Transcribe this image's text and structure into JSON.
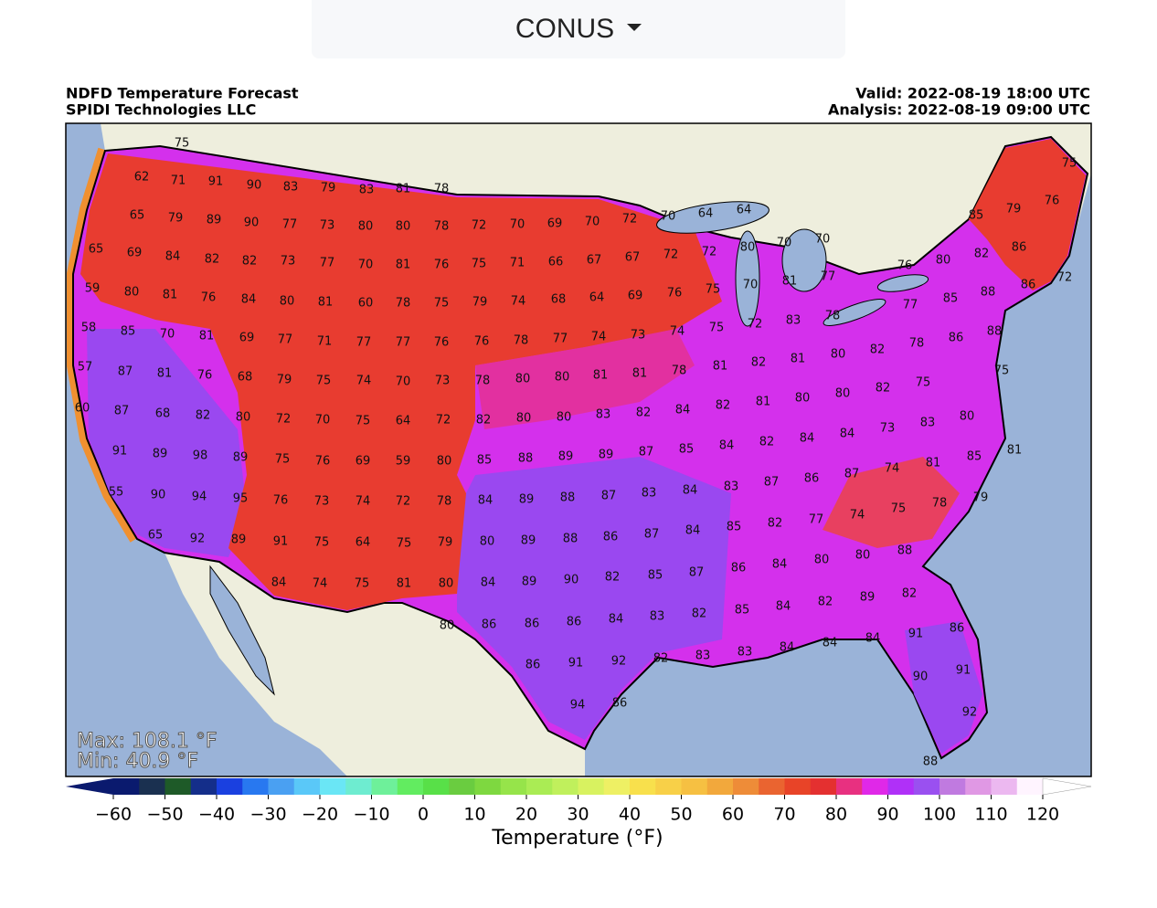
{
  "dropdown": {
    "label": "CONUS"
  },
  "map": {
    "title": "NDFD Temperature Forecast",
    "source": "SPIDI Technologies LLC",
    "valid": "Valid: 2022-08-19 18:00 UTC",
    "analysis": "Analysis: 2022-08-19 09:00 UTC",
    "max_label": "Max: 108.1 °F",
    "min_label": "Min: 40.9 °F",
    "station_values": [
      75,
      62,
      71,
      91,
      90,
      83,
      79,
      83,
      81,
      78,
      65,
      79,
      89,
      90,
      77,
      73,
      80,
      80,
      78,
      72,
      70,
      69,
      70,
      72,
      70,
      64,
      64,
      85,
      79,
      76,
      75,
      65,
      69,
      84,
      82,
      82,
      73,
      77,
      70,
      81,
      76,
      75,
      71,
      66,
      67,
      67,
      72,
      72,
      80,
      70,
      70,
      80,
      82,
      86,
      76,
      72,
      59,
      80,
      81,
      76,
      84,
      80,
      81,
      60,
      78,
      75,
      79,
      74,
      68,
      64,
      69,
      76,
      75,
      70,
      81,
      77,
      88,
      86,
      85,
      77,
      58,
      85,
      70,
      81,
      69,
      77,
      71,
      77,
      77,
      76,
      76,
      78,
      77,
      74,
      73,
      74,
      75,
      72,
      83,
      78,
      88,
      86,
      78,
      82,
      57,
      87,
      81,
      76,
      68,
      79,
      75,
      74,
      70,
      73,
      78,
      80,
      80,
      81,
      81,
      78,
      81,
      82,
      81,
      80,
      75,
      75,
      82,
      60,
      87,
      68,
      82,
      80,
      72,
      70,
      75,
      64,
      72,
      82,
      80,
      80,
      83,
      82,
      84,
      82,
      81,
      80,
      80,
      80,
      83,
      73,
      91,
      89,
      98,
      89,
      75,
      76,
      69,
      59,
      80,
      85,
      88,
      89,
      89,
      87,
      85,
      84,
      82,
      84,
      84,
      81,
      85,
      81,
      74,
      87,
      86,
      87,
      83,
      55,
      90,
      94,
      95,
      76,
      73,
      74,
      72,
      78,
      84,
      89,
      88,
      87,
      83,
      84,
      79,
      78,
      75,
      74,
      77,
      82,
      85,
      65,
      92,
      89,
      91,
      75,
      64,
      75,
      79,
      80,
      89,
      88,
      86,
      87,
      84,
      88,
      80,
      80,
      84,
      86,
      87,
      85,
      84,
      74,
      75,
      81,
      80,
      84,
      89,
      90,
      82,
      82,
      89,
      82,
      84,
      85,
      82,
      83,
      84,
      86,
      86,
      86,
      80,
      91,
      86,
      84,
      84,
      84,
      83,
      83,
      82,
      92,
      91,
      86,
      90,
      91,
      94,
      86,
      92,
      88
    ]
  },
  "colorbar": {
    "label": "Temperature (°F)",
    "lim": [
      -60,
      120
    ],
    "ticks": [
      {
        "value": -60,
        "label": "−60"
      },
      {
        "value": -50,
        "label": "−50"
      },
      {
        "value": -40,
        "label": "−40"
      },
      {
        "value": -30,
        "label": "−30"
      },
      {
        "value": -20,
        "label": "−20"
      },
      {
        "value": -10,
        "label": "−10"
      },
      0,
      10,
      20,
      30,
      40,
      50,
      60,
      70,
      80,
      90,
      100,
      110,
      120
    ],
    "colors": [
      "#0a1a6e",
      "#1a3050",
      "#1e5a28",
      "#142e8a",
      "#1a40e0",
      "#2878f0",
      "#4aa0f2",
      "#5ac8f8",
      "#6ae6f5",
      "#6eecd0",
      "#6ef09a",
      "#62ec60",
      "#58e048",
      "#6acc40",
      "#7ed840",
      "#96e44a",
      "#aaec54",
      "#c0f05c",
      "#d8f260",
      "#eef064",
      "#f8e04c",
      "#f8d048",
      "#f6c042",
      "#f2a83c",
      "#ee8c38",
      "#ea6430",
      "#e84428",
      "#e43030",
      "#e83080",
      "#e028e8",
      "#b030f8",
      "#9a50f0",
      "#c07ae0",
      "#e098e4",
      "#ecb8f0",
      "#fff4ff"
    ],
    "under_color": "#0a1a6e",
    "over_color": "#ffffff"
  }
}
